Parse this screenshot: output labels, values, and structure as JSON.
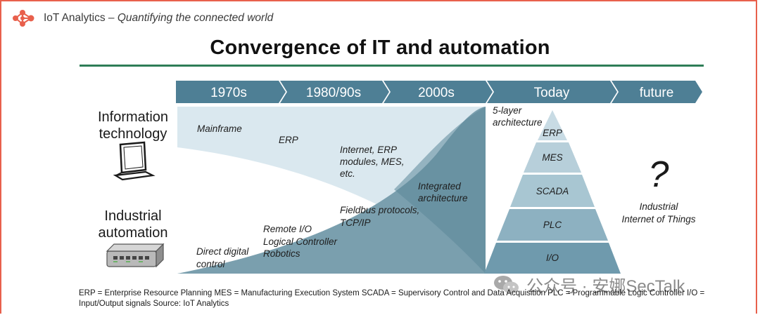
{
  "header": {
    "brand": "IoT Analytics",
    "tagline": "Quantifying the connected world",
    "title": "Convergence of IT and automation"
  },
  "timeline": [
    "1970s",
    "1980/90s",
    "2000s",
    "Today",
    "future"
  ],
  "rows": {
    "it": [
      "Information",
      "technology"
    ],
    "ia": [
      "Industrial",
      "automation"
    ]
  },
  "it_labels": {
    "mainframe": "Mainframe",
    "erp": "ERP",
    "internet": [
      "Internet, ERP",
      "modules, MES,",
      "etc."
    ],
    "integrated": [
      "Integrated",
      "architecture"
    ]
  },
  "ia_labels": {
    "direct": [
      "Direct digital",
      "control"
    ],
    "remote": [
      "Remote I/O",
      "Logical Controller",
      "Robotics"
    ],
    "fieldbus": [
      "Fieldbus protocols,",
      "TCP/IP"
    ]
  },
  "pyramid": {
    "caption": [
      "5-layer",
      "architecture"
    ],
    "layers": [
      "ERP",
      "MES",
      "SCADA",
      "PLC",
      "I/O"
    ]
  },
  "future": {
    "mark": "?",
    "caption": [
      "Industrial",
      "Internet of Things"
    ]
  },
  "legend": "ERP = Enterprise Resource Planning  MES = Manufacturing Execution System  SCADA = Supervisory Control and Data Acquisition  PLC = Programmable Logic Controller  I/O = Input/Output signals    Source: IoT Analytics",
  "watermark": "公众号 · 安娜SecTalk",
  "colors": {
    "banner": "#4e7f95",
    "rule": "#2e7d57",
    "it_area": "#dae8ef",
    "ia_area": "#7a9fae",
    "frame": "#e8604c",
    "logo": "#e8604c"
  }
}
